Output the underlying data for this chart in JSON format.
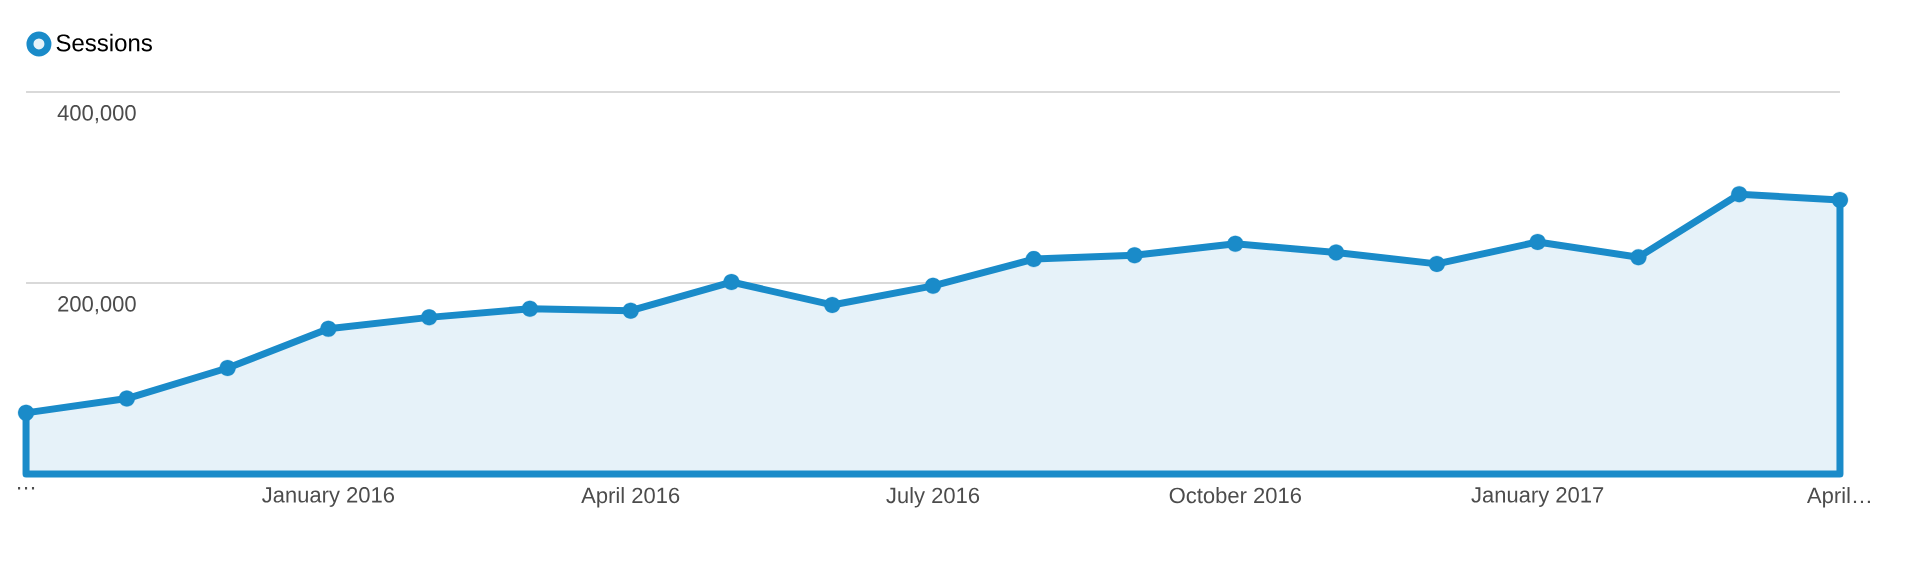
{
  "chart_data": {
    "type": "area",
    "categories": [
      "…",
      null,
      null,
      "January 2016",
      null,
      null,
      "April 2016",
      null,
      null,
      "July 2016",
      null,
      null,
      "October 2016",
      null,
      null,
      "January 2017",
      null,
      null,
      "April…"
    ],
    "series": [
      {
        "name": "Sessions",
        "color": "#1a8bc9",
        "values": [
          64000,
          79000,
          111000,
          152000,
          164000,
          173000,
          171000,
          201000,
          177000,
          197000,
          225000,
          229000,
          241000,
          232000,
          220000,
          243000,
          227000,
          293000,
          287000
        ]
      }
    ],
    "ylim": [
      0,
      400000
    ],
    "yticks": [
      {
        "value": 200000,
        "label": "200,000"
      },
      {
        "value": 400000,
        "label": "400,000"
      }
    ],
    "grid": "y",
    "legend": "top left",
    "marker": "circle",
    "tick_labels": "xy"
  }
}
